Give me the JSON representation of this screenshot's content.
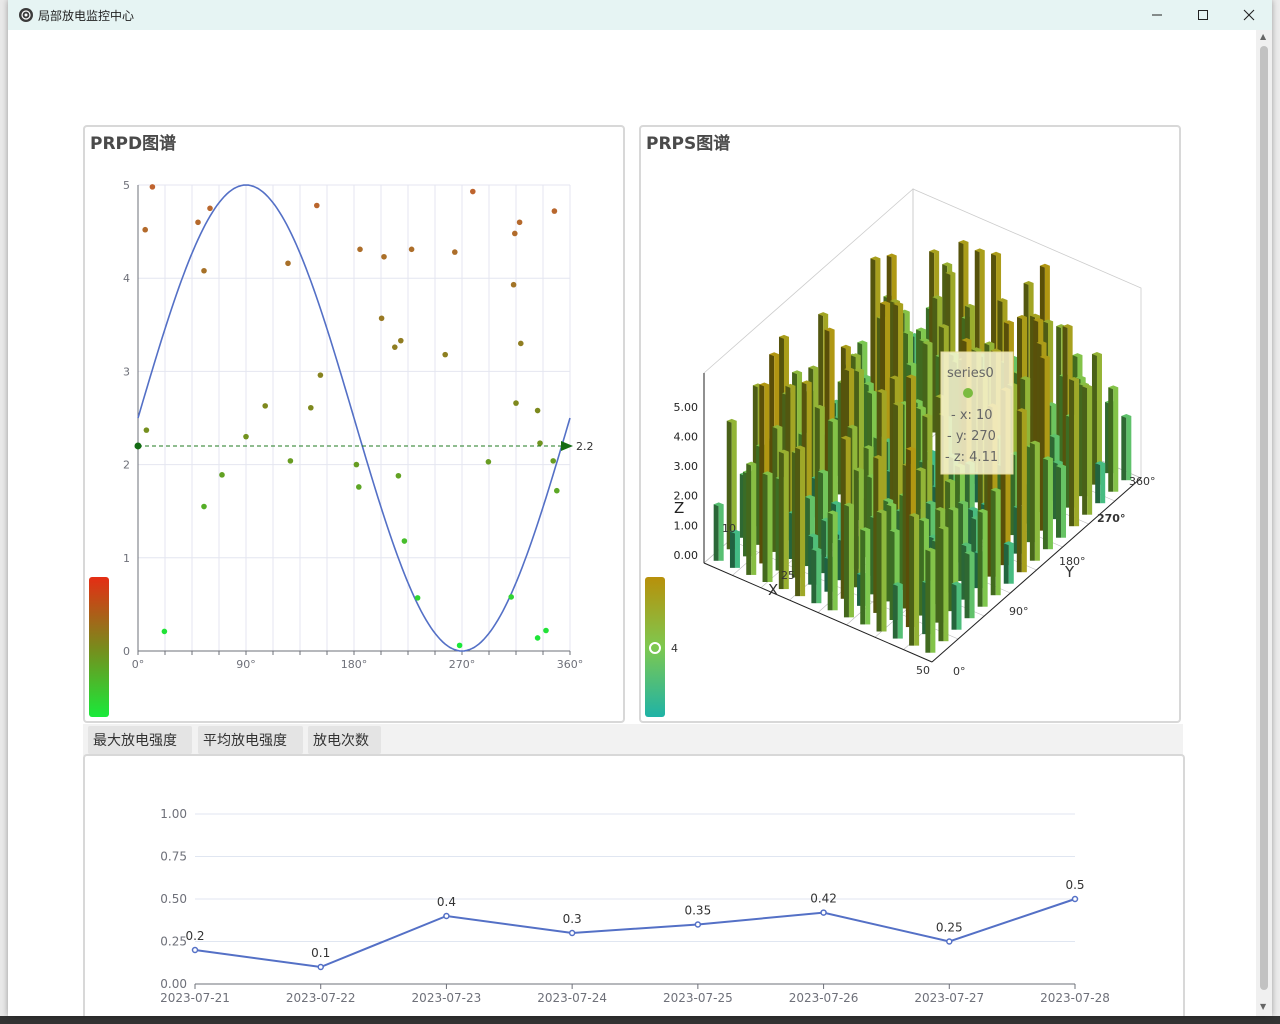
{
  "window": {
    "title": "局部放电监控中心",
    "minimize": "minimize",
    "maximize": "maximize",
    "close": "close"
  },
  "prpd": {
    "title": "PRPD图谱",
    "chart_data": {
      "type": "scatter",
      "xlabels": [
        "0°",
        "90°",
        "180°",
        "270°",
        "360°"
      ],
      "ylabels": [
        "0",
        "1",
        "2",
        "3",
        "4",
        "5"
      ],
      "xlim": [
        0,
        360
      ],
      "ylim": [
        0,
        5
      ],
      "sine": {
        "amplitude": 2.5,
        "offset": 2.5
      },
      "marker_value": 2.2,
      "marker_label": "2.2",
      "points": [
        [
          6,
          4.52
        ],
        [
          12,
          4.98
        ],
        [
          7,
          2.37
        ],
        [
          22,
          0.21
        ],
        [
          50,
          4.6
        ],
        [
          55,
          4.08
        ],
        [
          60,
          4.75
        ],
        [
          55,
          1.55
        ],
        [
          70,
          1.89
        ],
        [
          90,
          2.3
        ],
        [
          106,
          2.63
        ],
        [
          125,
          4.16
        ],
        [
          127,
          2.04
        ],
        [
          144,
          2.61
        ],
        [
          149,
          4.78
        ],
        [
          152,
          2.96
        ],
        [
          182,
          2.0
        ],
        [
          184,
          1.76
        ],
        [
          185,
          4.31
        ],
        [
          203,
          3.57
        ],
        [
          205,
          4.23
        ],
        [
          214,
          3.26
        ],
        [
          217,
          1.88
        ],
        [
          219,
          3.33
        ],
        [
          222,
          1.18
        ],
        [
          228,
          4.31
        ],
        [
          233,
          0.57
        ],
        [
          256,
          3.18
        ],
        [
          264,
          4.28
        ],
        [
          268,
          0.06
        ],
        [
          279,
          4.93
        ],
        [
          292,
          2.03
        ],
        [
          311,
          0.58
        ],
        [
          313,
          3.93
        ],
        [
          314,
          4.48
        ],
        [
          315,
          2.66
        ],
        [
          318,
          4.6
        ],
        [
          319,
          3.3
        ],
        [
          333,
          0.14
        ],
        [
          333,
          2.58
        ],
        [
          335,
          2.23
        ],
        [
          340,
          0.22
        ],
        [
          346,
          2.04
        ],
        [
          347,
          4.72
        ],
        [
          349,
          1.72
        ]
      ],
      "colormap": [
        "#e52d14",
        "#7a8a1c",
        "#19ea3a"
      ]
    }
  },
  "prps": {
    "title": "PRPS图谱",
    "chart_data": {
      "type": "bar3d",
      "z_ticks": [
        "0.00",
        "1.00",
        "2.00",
        "3.00",
        "4.00",
        "5.00"
      ],
      "x_ticks": [
        "10",
        "25",
        "50"
      ],
      "y_ticks": [
        "0°",
        "90°",
        "180°",
        "270°",
        "360°"
      ],
      "x_name": "X",
      "y_name": "Y",
      "z_name": "Z",
      "visual_map_value": "4",
      "colormap": [
        "#1fb3a6",
        "#7ec84f",
        "#b8900a"
      ]
    },
    "tooltip": {
      "series": "series0",
      "x": "- x: 10",
      "y": "- y: 270",
      "z": "- z: 4.11"
    }
  },
  "tabs": [
    "最大放电强度",
    "平均放电强度",
    "放电次数"
  ],
  "trend": {
    "chart_data": {
      "type": "line",
      "categories": [
        "2023-07-21",
        "2023-07-22",
        "2023-07-23",
        "2023-07-24",
        "2023-07-25",
        "2023-07-26",
        "2023-07-27",
        "2023-07-28"
      ],
      "values": [
        0.2,
        0.1,
        0.4,
        0.3,
        0.35,
        0.42,
        0.25,
        0.5
      ],
      "value_labels": [
        "0.2",
        "0.1",
        "0.4",
        "0.3",
        "0.35",
        "0.42",
        "0.25",
        "0.5"
      ],
      "yticks": [
        "0.00",
        "0.25",
        "0.50",
        "0.75",
        "1.00"
      ],
      "ylim": [
        0,
        1
      ],
      "color": "#5470c6"
    }
  }
}
